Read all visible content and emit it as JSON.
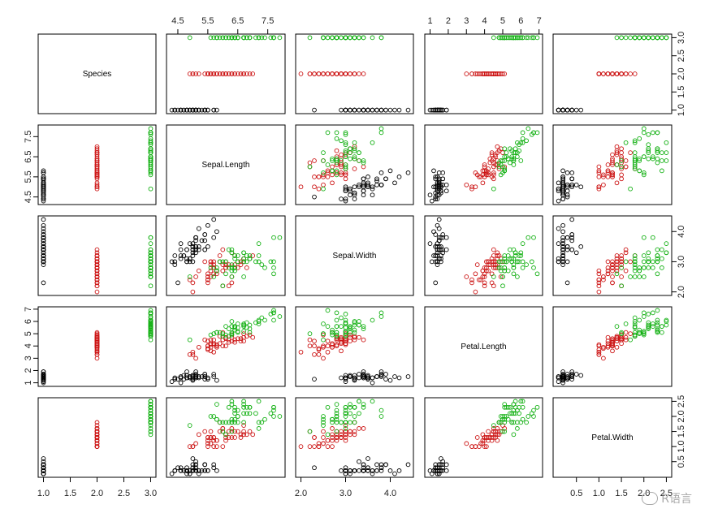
{
  "chart_data": {
    "type": "scatter",
    "title": "",
    "variables": [
      "Species",
      "Sepal.Length",
      "Sepal.Width",
      "Petal.Length",
      "Petal.Width"
    ],
    "ranges": [
      [
        1,
        3
      ],
      [
        4.3,
        7.9
      ],
      [
        2.0,
        4.4
      ],
      [
        1.0,
        6.9
      ],
      [
        0.1,
        2.5
      ]
    ],
    "ticks": [
      [
        1.0,
        1.5,
        2.0,
        2.5,
        3.0
      ],
      [
        4.5,
        5.5,
        6.5,
        7.5
      ],
      [
        2.0,
        3.0,
        4.0
      ],
      [
        1,
        2,
        3,
        4,
        5,
        6,
        7
      ],
      [
        0.5,
        1.0,
        1.5,
        2.0,
        2.5
      ]
    ],
    "tick_labels": [
      [
        "1.0",
        "1.5",
        "2.0",
        "2.5",
        "3.0"
      ],
      [
        "4.5",
        "5.5",
        "6.5",
        "7.5"
      ],
      [
        "2.0",
        "3.0",
        "4.0"
      ],
      [
        "1",
        "2",
        "3",
        "4",
        "5",
        "6",
        "7"
      ],
      [
        "0.5",
        "1.0",
        "1.5",
        "2.0",
        "2.5"
      ]
    ],
    "minor_ticks_sepal_length": [
      "5.0",
      "6.0",
      "7.0"
    ],
    "minor_ticks_sepal_width": [
      "2.5",
      "3.0",
      "3.5",
      "4.0"
    ],
    "grid": false,
    "marker": "open-circle",
    "group_colors": {
      "1": "#000000",
      "2": "#cc1414",
      "3": "#12b012"
    },
    "series": [
      {
        "species_code": 1,
        "points": [
          [
            5.1,
            3.5,
            1.4,
            0.2
          ],
          [
            4.9,
            3.0,
            1.4,
            0.2
          ],
          [
            4.7,
            3.2,
            1.3,
            0.2
          ],
          [
            4.6,
            3.1,
            1.5,
            0.2
          ],
          [
            5.0,
            3.6,
            1.4,
            0.2
          ],
          [
            5.4,
            3.9,
            1.7,
            0.4
          ],
          [
            4.6,
            3.4,
            1.4,
            0.3
          ],
          [
            5.0,
            3.4,
            1.5,
            0.2
          ],
          [
            4.4,
            2.9,
            1.4,
            0.2
          ],
          [
            4.9,
            3.1,
            1.5,
            0.1
          ],
          [
            5.4,
            3.7,
            1.5,
            0.2
          ],
          [
            4.8,
            3.4,
            1.6,
            0.2
          ],
          [
            4.8,
            3.0,
            1.4,
            0.1
          ],
          [
            4.3,
            3.0,
            1.1,
            0.1
          ],
          [
            5.8,
            4.0,
            1.2,
            0.2
          ],
          [
            5.7,
            4.4,
            1.5,
            0.4
          ],
          [
            5.4,
            3.9,
            1.3,
            0.4
          ],
          [
            5.1,
            3.5,
            1.4,
            0.3
          ],
          [
            5.7,
            3.8,
            1.7,
            0.3
          ],
          [
            5.1,
            3.8,
            1.5,
            0.3
          ],
          [
            5.4,
            3.4,
            1.7,
            0.2
          ],
          [
            5.1,
            3.7,
            1.5,
            0.4
          ],
          [
            4.6,
            3.6,
            1.0,
            0.2
          ],
          [
            5.1,
            3.3,
            1.7,
            0.5
          ],
          [
            4.8,
            3.4,
            1.9,
            0.2
          ],
          [
            5.0,
            3.0,
            1.6,
            0.2
          ],
          [
            5.0,
            3.4,
            1.6,
            0.4
          ],
          [
            5.2,
            3.5,
            1.5,
            0.2
          ],
          [
            5.2,
            3.4,
            1.4,
            0.2
          ],
          [
            4.7,
            3.2,
            1.6,
            0.2
          ],
          [
            4.8,
            3.1,
            1.6,
            0.2
          ],
          [
            5.4,
            3.4,
            1.5,
            0.4
          ],
          [
            5.2,
            4.1,
            1.5,
            0.1
          ],
          [
            5.5,
            4.2,
            1.4,
            0.2
          ],
          [
            4.9,
            3.1,
            1.5,
            0.2
          ],
          [
            5.0,
            3.2,
            1.2,
            0.2
          ],
          [
            5.5,
            3.5,
            1.3,
            0.2
          ],
          [
            4.9,
            3.6,
            1.4,
            0.1
          ],
          [
            4.4,
            3.0,
            1.3,
            0.2
          ],
          [
            5.1,
            3.4,
            1.5,
            0.2
          ],
          [
            5.0,
            3.5,
            1.3,
            0.3
          ],
          [
            4.5,
            2.3,
            1.3,
            0.3
          ],
          [
            4.4,
            3.2,
            1.3,
            0.2
          ],
          [
            5.0,
            3.5,
            1.6,
            0.6
          ],
          [
            5.1,
            3.8,
            1.9,
            0.4
          ],
          [
            4.8,
            3.0,
            1.4,
            0.3
          ],
          [
            5.1,
            3.8,
            1.6,
            0.2
          ],
          [
            4.6,
            3.2,
            1.4,
            0.2
          ],
          [
            5.3,
            3.7,
            1.5,
            0.2
          ],
          [
            5.0,
            3.3,
            1.4,
            0.2
          ]
        ]
      },
      {
        "species_code": 2,
        "points": [
          [
            7.0,
            3.2,
            4.7,
            1.4
          ],
          [
            6.4,
            3.2,
            4.5,
            1.5
          ],
          [
            6.9,
            3.1,
            4.9,
            1.5
          ],
          [
            5.5,
            2.3,
            4.0,
            1.3
          ],
          [
            6.5,
            2.8,
            4.6,
            1.5
          ],
          [
            5.7,
            2.8,
            4.5,
            1.3
          ],
          [
            6.3,
            3.3,
            4.7,
            1.6
          ],
          [
            4.9,
            2.4,
            3.3,
            1.0
          ],
          [
            6.6,
            2.9,
            4.6,
            1.3
          ],
          [
            5.2,
            2.7,
            3.9,
            1.4
          ],
          [
            5.0,
            2.0,
            3.5,
            1.0
          ],
          [
            5.9,
            3.0,
            4.2,
            1.5
          ],
          [
            6.0,
            2.2,
            4.0,
            1.0
          ],
          [
            6.1,
            2.9,
            4.7,
            1.4
          ],
          [
            5.6,
            2.9,
            3.6,
            1.3
          ],
          [
            6.7,
            3.1,
            4.4,
            1.4
          ],
          [
            5.6,
            3.0,
            4.5,
            1.5
          ],
          [
            5.8,
            2.7,
            4.1,
            1.0
          ],
          [
            6.2,
            2.2,
            4.5,
            1.5
          ],
          [
            5.6,
            2.5,
            3.9,
            1.1
          ],
          [
            5.9,
            3.2,
            4.8,
            1.8
          ],
          [
            6.1,
            2.8,
            4.0,
            1.3
          ],
          [
            6.3,
            2.5,
            4.9,
            1.5
          ],
          [
            6.1,
            2.8,
            4.7,
            1.2
          ],
          [
            6.4,
            2.9,
            4.3,
            1.3
          ],
          [
            6.6,
            3.0,
            4.4,
            1.4
          ],
          [
            6.8,
            2.8,
            4.8,
            1.4
          ],
          [
            6.7,
            3.0,
            5.0,
            1.7
          ],
          [
            6.0,
            2.9,
            4.5,
            1.5
          ],
          [
            5.7,
            2.6,
            3.5,
            1.0
          ],
          [
            5.5,
            2.4,
            3.8,
            1.1
          ],
          [
            5.5,
            2.4,
            3.7,
            1.0
          ],
          [
            5.8,
            2.7,
            3.9,
            1.2
          ],
          [
            6.0,
            2.7,
            5.1,
            1.6
          ],
          [
            5.4,
            3.0,
            4.5,
            1.5
          ],
          [
            6.0,
            3.4,
            4.5,
            1.6
          ],
          [
            6.7,
            3.1,
            4.7,
            1.5
          ],
          [
            6.3,
            2.3,
            4.4,
            1.3
          ],
          [
            5.6,
            3.0,
            4.1,
            1.3
          ],
          [
            5.5,
            2.5,
            4.0,
            1.3
          ],
          [
            5.5,
            2.6,
            4.4,
            1.2
          ],
          [
            6.1,
            3.0,
            4.6,
            1.4
          ],
          [
            5.8,
            2.6,
            4.0,
            1.2
          ],
          [
            5.0,
            2.3,
            3.3,
            1.0
          ],
          [
            5.6,
            2.7,
            4.2,
            1.3
          ],
          [
            5.7,
            3.0,
            4.2,
            1.2
          ],
          [
            5.7,
            2.9,
            4.2,
            1.3
          ],
          [
            6.2,
            2.9,
            4.3,
            1.3
          ],
          [
            5.1,
            2.5,
            3.0,
            1.1
          ],
          [
            5.7,
            2.8,
            4.1,
            1.3
          ]
        ]
      },
      {
        "species_code": 3,
        "points": [
          [
            6.3,
            3.3,
            6.0,
            2.5
          ],
          [
            5.8,
            2.7,
            5.1,
            1.9
          ],
          [
            7.1,
            3.0,
            5.9,
            2.1
          ],
          [
            6.3,
            2.9,
            5.6,
            1.8
          ],
          [
            6.5,
            3.0,
            5.8,
            2.2
          ],
          [
            7.6,
            3.0,
            6.6,
            2.1
          ],
          [
            4.9,
            2.5,
            4.5,
            1.7
          ],
          [
            7.3,
            2.9,
            6.3,
            1.8
          ],
          [
            6.7,
            2.5,
            5.8,
            1.8
          ],
          [
            7.2,
            3.6,
            6.1,
            2.5
          ],
          [
            6.5,
            3.2,
            5.1,
            2.0
          ],
          [
            6.4,
            2.7,
            5.3,
            1.9
          ],
          [
            6.8,
            3.0,
            5.5,
            2.1
          ],
          [
            5.7,
            2.5,
            5.0,
            2.0
          ],
          [
            5.8,
            2.8,
            5.1,
            2.4
          ],
          [
            6.4,
            3.2,
            5.3,
            2.3
          ],
          [
            6.5,
            3.0,
            5.5,
            1.8
          ],
          [
            7.7,
            3.8,
            6.7,
            2.2
          ],
          [
            7.7,
            2.6,
            6.9,
            2.3
          ],
          [
            6.0,
            2.2,
            5.0,
            1.5
          ],
          [
            6.9,
            3.2,
            5.7,
            2.3
          ],
          [
            5.6,
            2.8,
            4.9,
            2.0
          ],
          [
            7.7,
            2.8,
            6.7,
            2.0
          ],
          [
            6.3,
            2.7,
            4.9,
            1.8
          ],
          [
            6.7,
            3.3,
            5.7,
            2.1
          ],
          [
            7.2,
            3.2,
            6.0,
            1.8
          ],
          [
            6.2,
            2.8,
            4.8,
            1.8
          ],
          [
            6.1,
            3.0,
            4.9,
            1.8
          ],
          [
            6.4,
            2.8,
            5.6,
            2.1
          ],
          [
            7.2,
            3.0,
            5.8,
            1.6
          ],
          [
            7.4,
            2.8,
            6.1,
            1.9
          ],
          [
            7.9,
            3.8,
            6.4,
            2.0
          ],
          [
            6.4,
            2.8,
            5.6,
            2.2
          ],
          [
            6.3,
            2.8,
            5.1,
            1.5
          ],
          [
            6.1,
            2.6,
            5.6,
            1.4
          ],
          [
            7.7,
            3.0,
            6.1,
            2.3
          ],
          [
            6.3,
            3.4,
            5.6,
            2.4
          ],
          [
            6.4,
            3.1,
            5.5,
            1.8
          ],
          [
            6.0,
            3.0,
            4.8,
            1.8
          ],
          [
            6.9,
            3.1,
            5.4,
            2.1
          ],
          [
            6.7,
            3.1,
            5.6,
            2.4
          ],
          [
            6.9,
            3.1,
            5.1,
            2.3
          ],
          [
            5.8,
            2.7,
            5.1,
            1.9
          ],
          [
            6.8,
            3.2,
            5.9,
            2.3
          ],
          [
            6.7,
            3.3,
            5.7,
            2.5
          ],
          [
            6.7,
            3.0,
            5.2,
            2.3
          ],
          [
            6.3,
            2.5,
            5.0,
            1.9
          ],
          [
            6.5,
            3.0,
            5.2,
            2.0
          ],
          [
            6.2,
            3.4,
            5.4,
            2.3
          ],
          [
            5.9,
            3.0,
            5.1,
            1.8
          ]
        ]
      }
    ]
  },
  "watermark": {
    "text": "R语言",
    "icon": "wechat-bubble-icon"
  }
}
